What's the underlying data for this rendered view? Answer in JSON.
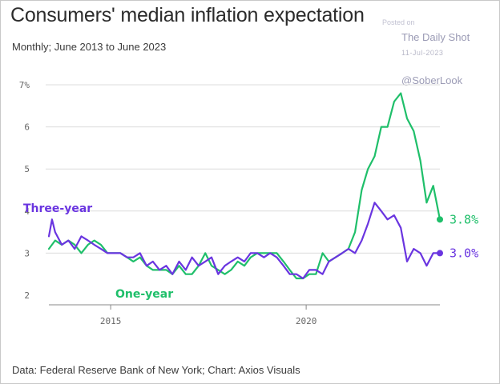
{
  "header": {
    "title": "Consumers' median inflation expectation",
    "subtitle": "Monthly; June 2013 to June 2023"
  },
  "watermark": {
    "posted": "Posted on",
    "source": "The Daily Shot",
    "date": "11-Jul-2023",
    "handle": "@SoberLook"
  },
  "footer": {
    "source_text": "Data: Federal Reserve Bank of New York; Chart: Axios Visuals"
  },
  "chart_data": {
    "type": "line",
    "title": "Consumers' median inflation expectation",
    "subtitle": "Monthly; June 2013 to June 2023",
    "xlabel": "",
    "ylabel": "",
    "xlim": [
      2013.42,
      2023.42
    ],
    "ylim": [
      2,
      7
    ],
    "y_ticks": [
      {
        "value": 7,
        "label": "7%"
      },
      {
        "value": 6,
        "label": "6"
      },
      {
        "value": 5,
        "label": "5"
      },
      {
        "value": 4,
        "label": "4"
      },
      {
        "value": 3,
        "label": "3"
      },
      {
        "value": 2,
        "label": "2"
      }
    ],
    "x_ticks": [
      {
        "value": 2015,
        "label": "2015"
      },
      {
        "value": 2020,
        "label": "2020"
      }
    ],
    "grid": "horizontal",
    "colors": {
      "one_year": "#1fbf6a",
      "three_year": "#6a35e0",
      "grid": "#dcdcdc",
      "axis": "#888888"
    },
    "series": [
      {
        "key": "one_year",
        "name": "One-year",
        "end_label": "3.8%",
        "points": [
          [
            2013.42,
            3.1
          ],
          [
            2013.58,
            3.3
          ],
          [
            2013.75,
            3.2
          ],
          [
            2013.92,
            3.3
          ],
          [
            2014.08,
            3.2
          ],
          [
            2014.25,
            3.0
          ],
          [
            2014.42,
            3.2
          ],
          [
            2014.58,
            3.3
          ],
          [
            2014.75,
            3.2
          ],
          [
            2014.92,
            3.0
          ],
          [
            2015.08,
            3.0
          ],
          [
            2015.25,
            3.0
          ],
          [
            2015.42,
            2.9
          ],
          [
            2015.58,
            2.8
          ],
          [
            2015.75,
            2.9
          ],
          [
            2015.92,
            2.7
          ],
          [
            2016.08,
            2.6
          ],
          [
            2016.25,
            2.6
          ],
          [
            2016.42,
            2.6
          ],
          [
            2016.58,
            2.5
          ],
          [
            2016.75,
            2.7
          ],
          [
            2016.92,
            2.5
          ],
          [
            2017.08,
            2.5
          ],
          [
            2017.25,
            2.7
          ],
          [
            2017.42,
            3.0
          ],
          [
            2017.58,
            2.7
          ],
          [
            2017.75,
            2.6
          ],
          [
            2017.92,
            2.5
          ],
          [
            2018.08,
            2.6
          ],
          [
            2018.25,
            2.8
          ],
          [
            2018.42,
            2.7
          ],
          [
            2018.58,
            2.9
          ],
          [
            2018.75,
            3.0
          ],
          [
            2018.92,
            3.0
          ],
          [
            2019.08,
            3.0
          ],
          [
            2019.25,
            3.0
          ],
          [
            2019.42,
            2.8
          ],
          [
            2019.58,
            2.6
          ],
          [
            2019.75,
            2.4
          ],
          [
            2019.92,
            2.4
          ],
          [
            2020.08,
            2.5
          ],
          [
            2020.25,
            2.5
          ],
          [
            2020.42,
            3.0
          ],
          [
            2020.58,
            2.8
          ],
          [
            2020.75,
            2.9
          ],
          [
            2020.92,
            3.0
          ],
          [
            2021.08,
            3.1
          ],
          [
            2021.25,
            3.5
          ],
          [
            2021.42,
            4.5
          ],
          [
            2021.58,
            5.0
          ],
          [
            2021.75,
            5.3
          ],
          [
            2021.92,
            6.0
          ],
          [
            2022.08,
            6.0
          ],
          [
            2022.25,
            6.6
          ],
          [
            2022.42,
            6.8
          ],
          [
            2022.58,
            6.2
          ],
          [
            2022.75,
            5.9
          ],
          [
            2022.92,
            5.2
          ],
          [
            2023.08,
            4.2
          ],
          [
            2023.25,
            4.6
          ],
          [
            2023.42,
            3.8
          ]
        ]
      },
      {
        "key": "three_year",
        "name": "Three-year",
        "end_label": "3.0%",
        "points": [
          [
            2013.42,
            3.4
          ],
          [
            2013.5,
            3.8
          ],
          [
            2013.58,
            3.5
          ],
          [
            2013.75,
            3.2
          ],
          [
            2013.92,
            3.3
          ],
          [
            2014.08,
            3.1
          ],
          [
            2014.25,
            3.4
          ],
          [
            2014.42,
            3.3
          ],
          [
            2014.58,
            3.2
          ],
          [
            2014.75,
            3.1
          ],
          [
            2014.92,
            3.0
          ],
          [
            2015.08,
            3.0
          ],
          [
            2015.25,
            3.0
          ],
          [
            2015.42,
            2.9
          ],
          [
            2015.58,
            2.9
          ],
          [
            2015.75,
            3.0
          ],
          [
            2015.92,
            2.7
          ],
          [
            2016.08,
            2.8
          ],
          [
            2016.25,
            2.6
          ],
          [
            2016.42,
            2.7
          ],
          [
            2016.58,
            2.5
          ],
          [
            2016.75,
            2.8
          ],
          [
            2016.92,
            2.6
          ],
          [
            2017.08,
            2.9
          ],
          [
            2017.25,
            2.7
          ],
          [
            2017.42,
            2.8
          ],
          [
            2017.58,
            2.9
          ],
          [
            2017.75,
            2.5
          ],
          [
            2017.92,
            2.7
          ],
          [
            2018.08,
            2.8
          ],
          [
            2018.25,
            2.9
          ],
          [
            2018.42,
            2.8
          ],
          [
            2018.58,
            3.0
          ],
          [
            2018.75,
            3.0
          ],
          [
            2018.92,
            2.9
          ],
          [
            2019.08,
            3.0
          ],
          [
            2019.25,
            2.9
          ],
          [
            2019.42,
            2.7
          ],
          [
            2019.58,
            2.5
          ],
          [
            2019.75,
            2.5
          ],
          [
            2019.92,
            2.4
          ],
          [
            2020.08,
            2.6
          ],
          [
            2020.25,
            2.6
          ],
          [
            2020.42,
            2.5
          ],
          [
            2020.58,
            2.8
          ],
          [
            2020.75,
            2.9
          ],
          [
            2020.92,
            3.0
          ],
          [
            2021.08,
            3.1
          ],
          [
            2021.25,
            3.0
          ],
          [
            2021.42,
            3.3
          ],
          [
            2021.58,
            3.7
          ],
          [
            2021.75,
            4.2
          ],
          [
            2021.92,
            4.0
          ],
          [
            2022.08,
            3.8
          ],
          [
            2022.25,
            3.9
          ],
          [
            2022.42,
            3.6
          ],
          [
            2022.58,
            2.8
          ],
          [
            2022.75,
            3.1
          ],
          [
            2022.92,
            3.0
          ],
          [
            2023.08,
            2.7
          ],
          [
            2023.25,
            3.0
          ],
          [
            2023.42,
            3.0
          ]
        ]
      }
    ]
  }
}
